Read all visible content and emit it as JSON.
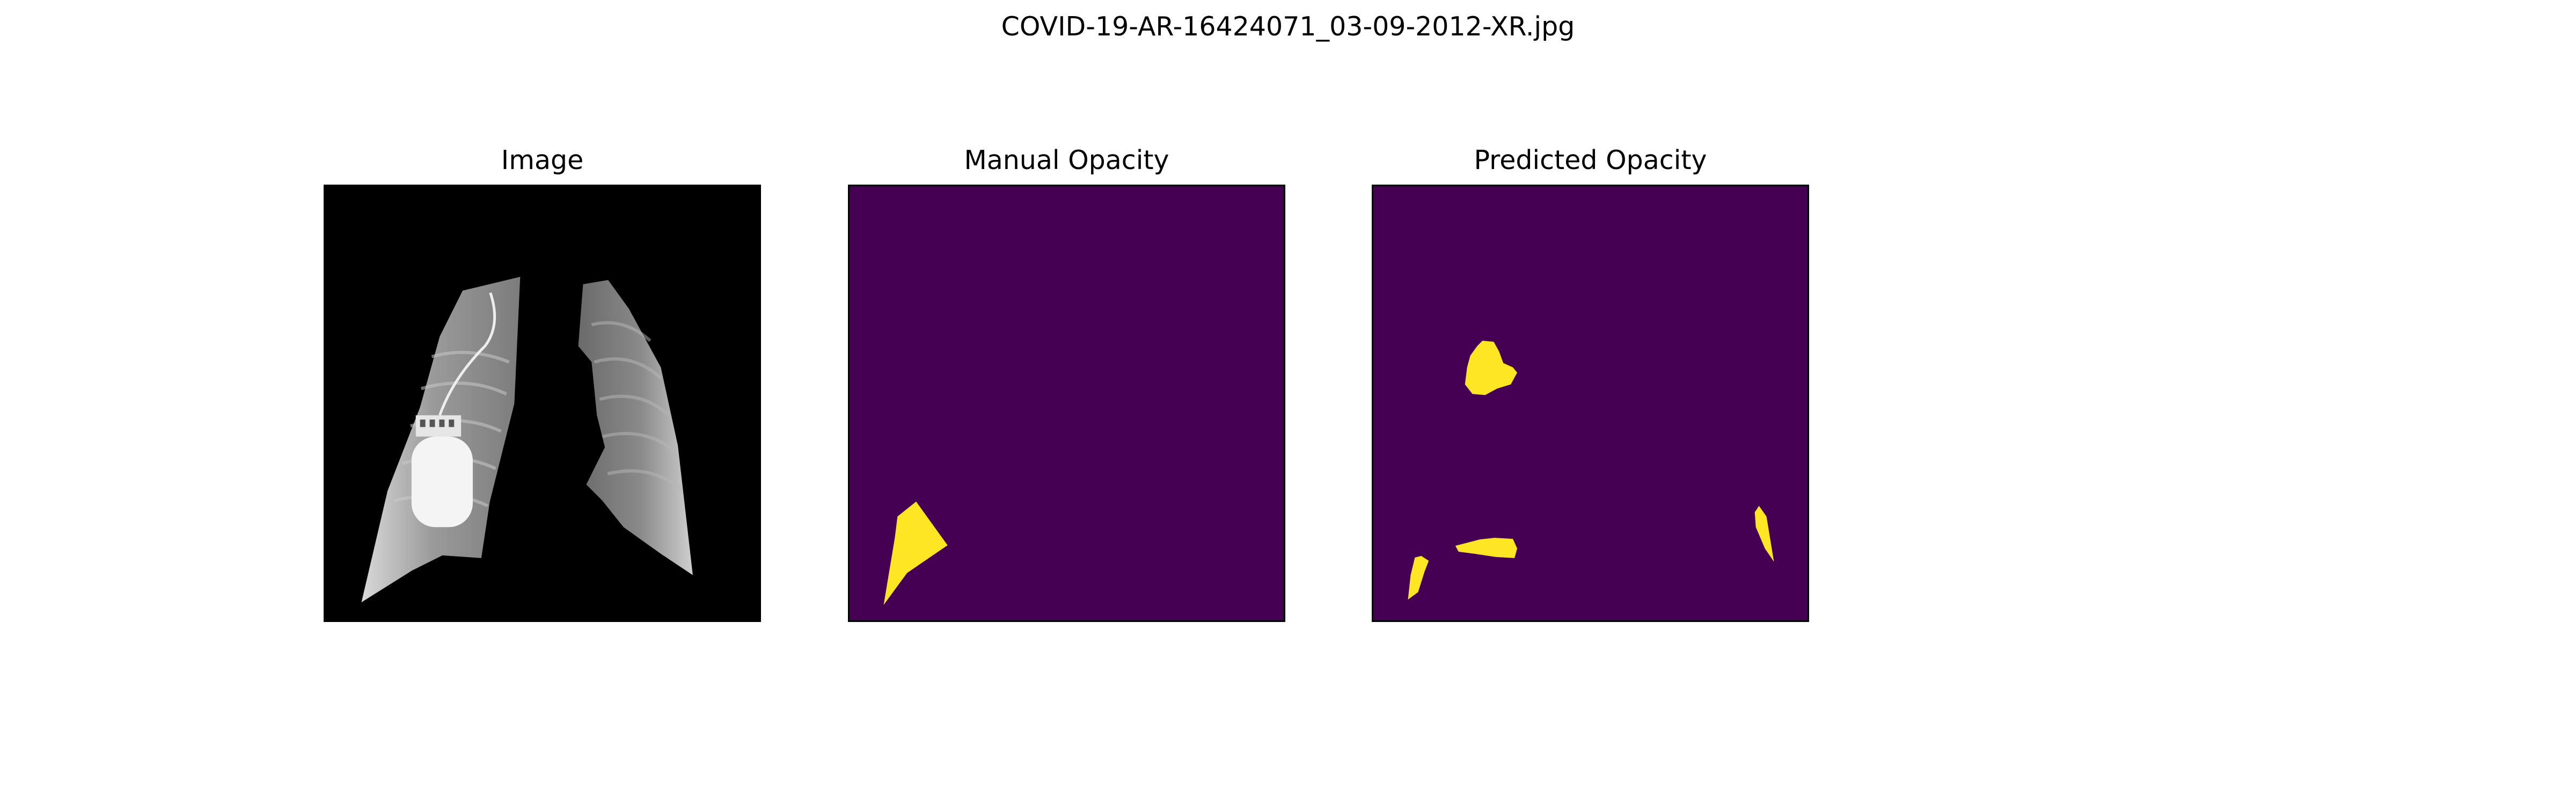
{
  "figure": {
    "title": "COVID-19-AR-16424071_03-09-2012-XR.jpg"
  },
  "panels": [
    {
      "title": "Image"
    },
    {
      "title": "Manual Opacity"
    },
    {
      "title": "Predicted Opacity"
    }
  ],
  "colors": {
    "mask_background": "#440154",
    "mask_foreground": "#fde725",
    "image_background": "#000000"
  }
}
